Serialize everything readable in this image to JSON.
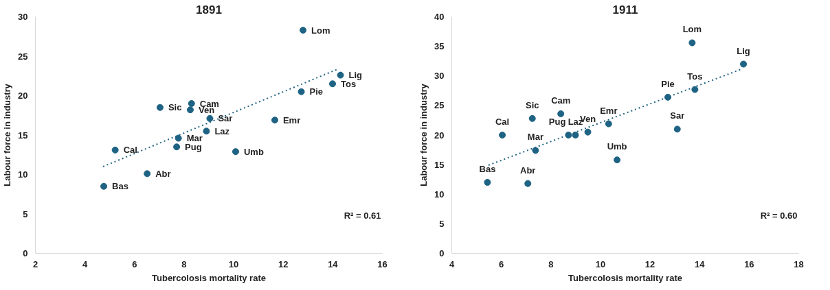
{
  "chart_data": [
    {
      "type": "scatter",
      "title": "1891",
      "xlabel": "Tubercolosis mortality rate",
      "ylabel": "Labour force in industry",
      "xlim": [
        2,
        16
      ],
      "xticks": [
        2,
        4,
        6,
        8,
        10,
        12,
        14,
        16
      ],
      "ylim": [
        0,
        30
      ],
      "yticks": [
        0,
        5,
        10,
        15,
        20,
        25,
        30
      ],
      "marker": "circle",
      "grid": false,
      "series": [
        {
          "color": "#1f6384",
          "x": [
            12.8,
            14.31,
            13.99,
            12.73,
            8.3,
            7.03,
            8.25,
            9.04,
            11.66,
            8.9,
            7.77,
            7.7,
            5.22,
            10.08,
            6.51,
            4.76
          ],
          "values": [
            28.3,
            22.6,
            21.5,
            20.5,
            19.0,
            18.5,
            18.2,
            17.1,
            16.9,
            15.5,
            14.6,
            13.5,
            13.1,
            12.9,
            10.1,
            8.5
          ]
        },
        {
          "type": "line",
          "marker": "none",
          "color": "#1f6384",
          "line_style": "dotted",
          "x": [
            4.73,
            14.23
          ],
          "values": [
            11.0,
            23.4
          ]
        }
      ],
      "annotations": [
        {
          "text": "Lom",
          "x": 12.8,
          "y": 28.3
        },
        {
          "text": "Lig",
          "x": 14.31,
          "y": 22.6
        },
        {
          "text": "Tos",
          "x": 13.99,
          "y": 21.5
        },
        {
          "text": "Pie",
          "x": 12.73,
          "y": 20.5
        },
        {
          "text": "Cam",
          "x": 8.3,
          "y": 19.0
        },
        {
          "text": "Sic",
          "x": 7.03,
          "y": 18.5
        },
        {
          "text": "Ven",
          "x": 8.25,
          "y": 18.2
        },
        {
          "text": "Sar",
          "x": 9.04,
          "y": 17.1
        },
        {
          "text": "Emr",
          "x": 11.66,
          "y": 16.9
        },
        {
          "text": "Laz",
          "x": 8.9,
          "y": 15.5
        },
        {
          "text": "Mar",
          "x": 7.77,
          "y": 14.6
        },
        {
          "text": "Pug",
          "x": 7.7,
          "y": 13.5
        },
        {
          "text": "Cal",
          "x": 5.22,
          "y": 13.1
        },
        {
          "text": "Umb",
          "x": 10.08,
          "y": 12.9
        },
        {
          "text": "Abr",
          "x": 6.51,
          "y": 10.1
        },
        {
          "text": "Bas",
          "x": 4.76,
          "y": 8.5
        },
        "R² = 0.61"
      ]
    },
    {
      "type": "scatter",
      "title": "1911",
      "xlabel": "Tubercolosis mortality rate",
      "ylabel": "Labour force in industry",
      "xlim": [
        4,
        18
      ],
      "xticks": [
        4,
        6,
        8,
        10,
        12,
        14,
        16,
        18
      ],
      "ylim": [
        0,
        40
      ],
      "yticks": [
        0,
        5,
        10,
        15,
        20,
        25,
        30,
        35,
        40
      ],
      "marker": "circle",
      "grid": false,
      "series": [
        {
          "color": "#1f6384",
          "x": [
            13.7,
            15.77,
            13.81,
            12.72,
            13.1,
            8.4,
            7.25,
            6.04,
            8.71,
            8.99,
            9.49,
            10.33,
            7.38,
            10.67,
            5.44,
            7.07
          ],
          "values": [
            35.6,
            32.0,
            27.7,
            26.4,
            21.0,
            23.6,
            22.8,
            20.0,
            20.0,
            20.0,
            20.5,
            21.9,
            17.4,
            15.8,
            12.0,
            11.8
          ]
        },
        {
          "type": "line",
          "marker": "none",
          "color": "#1f6384",
          "line_style": "dotted",
          "x": [
            5.48,
            15.72
          ],
          "values": [
            14.9,
            31.2
          ]
        }
      ],
      "annotations": [
        {
          "text": "Lom",
          "x": 13.7,
          "y": 35.6
        },
        {
          "text": "Lig",
          "x": 15.77,
          "y": 32.0
        },
        {
          "text": "Tos",
          "x": 13.81,
          "y": 27.7
        },
        {
          "text": "Pie",
          "x": 12.72,
          "y": 26.4
        },
        {
          "text": "Sar",
          "x": 13.1,
          "y": 21.0
        },
        {
          "text": "Cam",
          "x": 8.4,
          "y": 23.6
        },
        {
          "text": "Sic",
          "x": 7.25,
          "y": 22.8
        },
        {
          "text": "Cal",
          "x": 6.04,
          "y": 20.0
        },
        {
          "text": "Pug",
          "x": 8.71,
          "y": 20.0
        },
        {
          "text": "Laz",
          "x": 8.99,
          "y": 20.0
        },
        {
          "text": "Ven",
          "x": 9.49,
          "y": 20.5
        },
        {
          "text": "Emr",
          "x": 10.33,
          "y": 21.9
        },
        {
          "text": "Mar",
          "x": 7.38,
          "y": 17.4
        },
        {
          "text": "Umb",
          "x": 10.67,
          "y": 15.8
        },
        {
          "text": "Bas",
          "x": 5.44,
          "y": 12.0
        },
        {
          "text": "Abr",
          "x": 7.07,
          "y": 11.8
        },
        "R² = 0.60"
      ]
    }
  ]
}
